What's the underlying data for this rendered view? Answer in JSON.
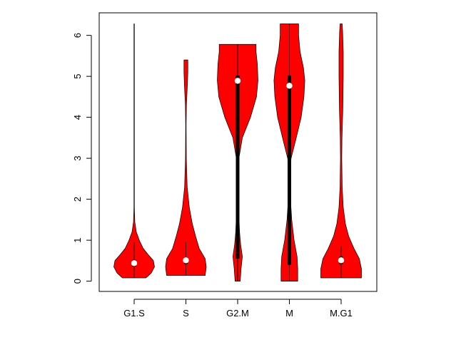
{
  "chart_data": {
    "type": "violin",
    "title": "",
    "xlabel": "",
    "ylabel": "",
    "ylim": [
      -0.25,
      6.55
    ],
    "yticks": [
      "0",
      "1",
      "2",
      "3",
      "4",
      "5",
      "6"
    ],
    "categories": [
      "G1.S",
      "S",
      "G2.M",
      "M",
      "M.G1"
    ],
    "fill_color": "#ff0000",
    "summary": [
      {
        "name": "G1.S",
        "min": 0.08,
        "max": 6.28,
        "median": 0.44,
        "q1": 0.36,
        "q3": 0.52,
        "whisker_low": 0.08,
        "whisker_high": 0.95
      },
      {
        "name": "S",
        "min": 0.14,
        "max": 5.4,
        "median": 0.51,
        "q1": 0.42,
        "q3": 0.58,
        "whisker_low": 0.14,
        "whisker_high": 0.95
      },
      {
        "name": "G2.M",
        "min": 0.0,
        "max": 5.78,
        "median": 4.89,
        "q1": 0.55,
        "q3": 5.02,
        "whisker_low": 0.0,
        "whisker_high": 5.78
      },
      {
        "name": "M",
        "min": 0.0,
        "max": 6.28,
        "median": 4.77,
        "q1": 0.4,
        "q3": 5.02,
        "whisker_low": 0.0,
        "whisker_high": 6.28
      },
      {
        "name": "M.G1",
        "min": 0.08,
        "max": 6.28,
        "median": 0.51,
        "q1": 0.42,
        "q3": 0.6,
        "whisker_low": 0.08,
        "whisker_high": 0.85
      }
    ],
    "density_profiles": [
      {
        "name": "G1.S",
        "points": [
          [
            0.08,
            0.55
          ],
          [
            0.2,
            0.8
          ],
          [
            0.35,
            0.95
          ],
          [
            0.5,
            0.9
          ],
          [
            0.65,
            0.65
          ],
          [
            0.8,
            0.42
          ],
          [
            1.0,
            0.24
          ],
          [
            1.2,
            0.1
          ],
          [
            1.45,
            0.03
          ],
          [
            1.8,
            0.01
          ],
          [
            6.28,
            0.01
          ]
        ]
      },
      {
        "name": "S",
        "points": [
          [
            0.14,
            0.9
          ],
          [
            0.35,
            0.95
          ],
          [
            0.55,
            0.9
          ],
          [
            0.8,
            0.62
          ],
          [
            1.1,
            0.45
          ],
          [
            1.4,
            0.3
          ],
          [
            1.8,
            0.16
          ],
          [
            2.3,
            0.06
          ],
          [
            3.0,
            0.02
          ],
          [
            3.8,
            0.01
          ],
          [
            4.3,
            0.025
          ],
          [
            4.8,
            0.07
          ],
          [
            5.1,
            0.09
          ],
          [
            5.4,
            0.09
          ]
        ]
      },
      {
        "name": "G2.M",
        "points": [
          [
            0.0,
            0.12
          ],
          [
            0.3,
            0.16
          ],
          [
            0.6,
            0.22
          ],
          [
            0.9,
            0.14
          ],
          [
            1.2,
            0.09
          ],
          [
            1.6,
            0.06
          ],
          [
            2.0,
            0.04
          ],
          [
            2.5,
            0.02
          ],
          [
            3.0,
            0.06
          ],
          [
            3.5,
            0.22
          ],
          [
            4.0,
            0.6
          ],
          [
            4.5,
            0.88
          ],
          [
            4.9,
            0.95
          ],
          [
            5.3,
            0.92
          ],
          [
            5.6,
            0.86
          ],
          [
            5.78,
            0.86
          ]
        ]
      },
      {
        "name": "M",
        "points": [
          [
            0.0,
            0.39
          ],
          [
            0.3,
            0.39
          ],
          [
            0.6,
            0.36
          ],
          [
            1.0,
            0.22
          ],
          [
            1.5,
            0.11
          ],
          [
            2.0,
            0.05
          ],
          [
            2.6,
            0.02
          ],
          [
            3.0,
            0.08
          ],
          [
            3.5,
            0.32
          ],
          [
            4.0,
            0.55
          ],
          [
            4.5,
            0.68
          ],
          [
            4.9,
            0.72
          ],
          [
            5.2,
            0.66
          ],
          [
            5.6,
            0.5
          ],
          [
            6.0,
            0.43
          ],
          [
            6.28,
            0.43
          ]
        ]
      },
      {
        "name": "M.G1",
        "points": [
          [
            0.08,
            0.95
          ],
          [
            0.3,
            0.95
          ],
          [
            0.55,
            0.85
          ],
          [
            0.8,
            0.6
          ],
          [
            1.1,
            0.35
          ],
          [
            1.4,
            0.2
          ],
          [
            1.8,
            0.1
          ],
          [
            2.3,
            0.05
          ],
          [
            3.0,
            0.03
          ],
          [
            3.5,
            0.04
          ],
          [
            4.2,
            0.08
          ],
          [
            5.0,
            0.1
          ],
          [
            5.6,
            0.1
          ],
          [
            6.1,
            0.07
          ],
          [
            6.28,
            0.05
          ]
        ]
      }
    ]
  }
}
